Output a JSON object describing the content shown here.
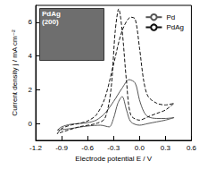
{
  "chart_data": {
    "type": "line",
    "x_label": "Electrode potential E / V",
    "y_label": "Current density j / mA cm⁻²",
    "xlim": [
      -1.2,
      0.6
    ],
    "xticks": [
      -1.2,
      -0.9,
      -0.6,
      -0.3,
      {
        "value": 0,
        "label": "0.0"
      },
      0.3,
      0.6
    ],
    "ylim": [
      -1,
      7
    ],
    "yticks": [
      0,
      2,
      4,
      6
    ],
    "grid": false,
    "legend": "upper right",
    "annotations": [
      "PdAg",
      "(200)"
    ],
    "series": [
      {
        "name": "Pd",
        "color": "#555555",
        "line_style": "solid",
        "x": [
          -0.95,
          -0.9,
          -0.8,
          -0.7,
          -0.6,
          -0.5,
          -0.4,
          -0.3,
          -0.2,
          -0.12,
          -0.05,
          0.0,
          0.05,
          0.1,
          0.2,
          0.3,
          0.4,
          0.3,
          0.2,
          0.1,
          0.0,
          -0.1,
          -0.15,
          -0.2,
          -0.25,
          -0.3,
          -0.35,
          -0.45,
          -0.6,
          -0.8,
          -0.95
        ],
        "values": [
          -0.4,
          -0.2,
          -0.05,
          0.0,
          0.05,
          0.2,
          0.6,
          1.3,
          2.1,
          2.6,
          2.4,
          1.4,
          0.7,
          0.4,
          0.3,
          0.3,
          0.35,
          0.2,
          0.1,
          0.0,
          -0.1,
          0.1,
          0.8,
          1.6,
          1.2,
          0.3,
          -0.2,
          -0.1,
          -0.15,
          -0.3,
          -0.4
        ]
      },
      {
        "name": "PdAg",
        "color": "#111111",
        "line_style": "dashed",
        "x": [
          -0.95,
          -0.9,
          -0.8,
          -0.7,
          -0.6,
          -0.5,
          -0.4,
          -0.3,
          -0.2,
          -0.1,
          -0.05,
          0.0,
          0.05,
          0.1,
          0.2,
          0.3,
          0.4,
          0.3,
          0.2,
          0.1,
          0.0,
          -0.1,
          -0.15,
          -0.2,
          -0.24,
          -0.28,
          -0.33,
          -0.4,
          -0.5,
          -0.7,
          -0.95
        ],
        "values": [
          -0.6,
          -0.3,
          -0.1,
          0.0,
          0.15,
          0.5,
          1.5,
          3.5,
          5.5,
          6.3,
          6.2,
          4.5,
          2.5,
          1.6,
          1.2,
          1.1,
          1.2,
          0.8,
          0.6,
          0.4,
          0.2,
          0.5,
          2.5,
          5.5,
          6.8,
          5.5,
          2.0,
          0.3,
          0.0,
          -0.2,
          -0.6
        ]
      }
    ]
  }
}
